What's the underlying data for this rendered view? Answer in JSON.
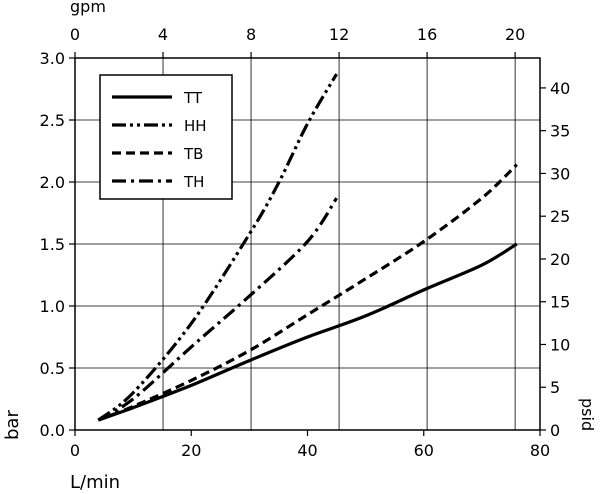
{
  "chart_data": {
    "type": "line",
    "xlabel": "L/min",
    "ylabel": "bar",
    "x2label": "gpm",
    "y2label": "psid",
    "xlim": [
      0,
      80
    ],
    "ylim": [
      0,
      3.0
    ],
    "x2lim": [
      0,
      21.13
    ],
    "y2lim": [
      0,
      43.5
    ],
    "xticks": [
      "0",
      "20",
      "40",
      "60",
      "80"
    ],
    "yticks": [
      "0.0",
      "0.5",
      "1.0",
      "1.5",
      "2.0",
      "2.5",
      "3.0"
    ],
    "x2ticks": [
      "0",
      "4",
      "8",
      "12",
      "16",
      "20"
    ],
    "y2ticks": [
      "0",
      "5",
      "10",
      "15",
      "20",
      "25",
      "30",
      "35",
      "40"
    ],
    "grid": true,
    "legend_position": "top-left",
    "series": [
      {
        "name": "TT",
        "dash": "solid",
        "x": [
          4,
          10,
          20,
          30,
          40,
          50,
          60,
          70,
          76
        ],
        "y": [
          0.08,
          0.18,
          0.36,
          0.56,
          0.75,
          0.92,
          1.13,
          1.33,
          1.5
        ]
      },
      {
        "name": "HH",
        "dash": "dash-dot-dot",
        "x": [
          4,
          10,
          20,
          30,
          35,
          40,
          45
        ],
        "y": [
          0.08,
          0.3,
          0.86,
          1.58,
          1.99,
          2.47,
          2.87
        ]
      },
      {
        "name": "TB",
        "dash": "dash",
        "x": [
          4,
          10,
          20,
          30,
          40,
          50,
          60,
          70,
          76
        ],
        "y": [
          0.08,
          0.19,
          0.4,
          0.64,
          0.93,
          1.22,
          1.52,
          1.87,
          2.14
        ]
      },
      {
        "name": "TH",
        "dash": "dash-dot",
        "x": [
          4,
          10,
          20,
          30,
          40,
          45
        ],
        "y": [
          0.08,
          0.25,
          0.67,
          1.08,
          1.52,
          1.87
        ]
      }
    ]
  }
}
